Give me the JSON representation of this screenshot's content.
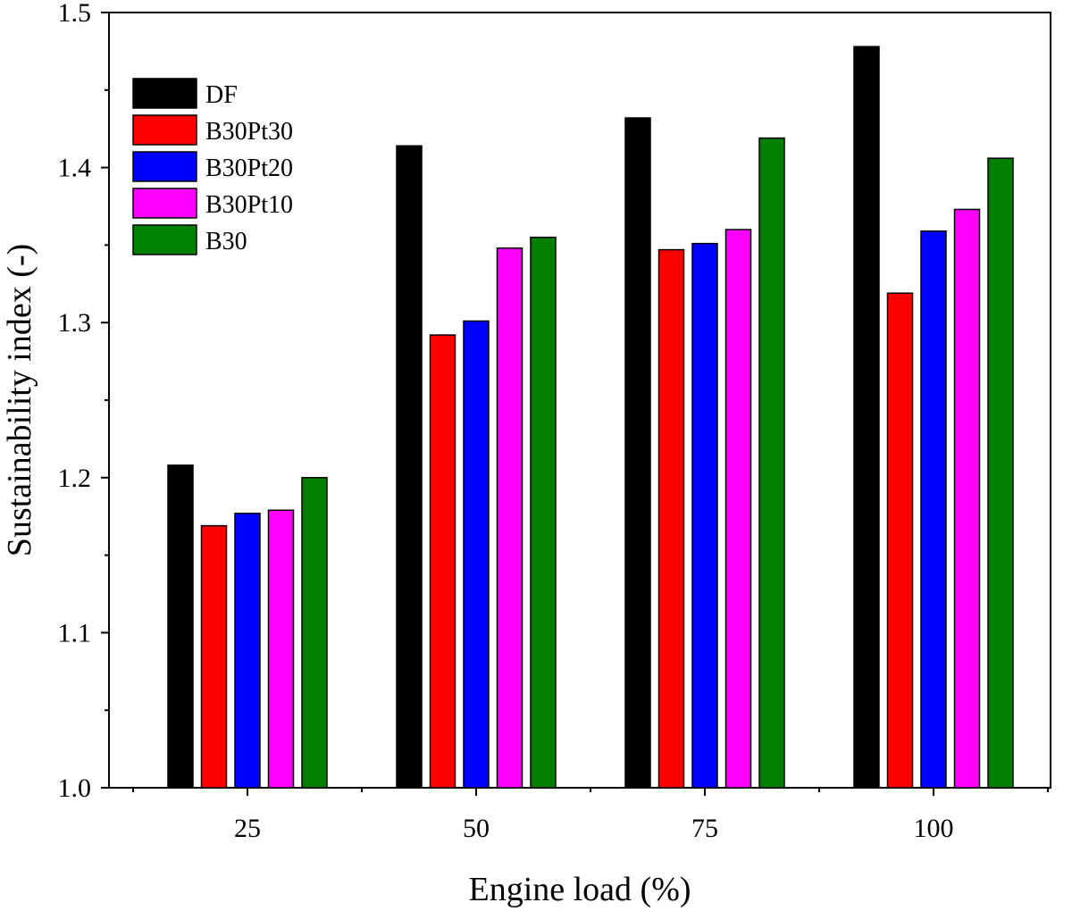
{
  "chart_data": {
    "type": "bar",
    "xlabel": "Engine load (%)",
    "ylabel": "Sustainability index (-)",
    "ylim": [
      1.0,
      1.5
    ],
    "yticks": [
      "1.0",
      "1.1",
      "1.2",
      "1.3",
      "1.4",
      "1.5"
    ],
    "categories": [
      "25",
      "50",
      "75",
      "100"
    ],
    "series": [
      {
        "name": "DF",
        "color": "#000000",
        "values": [
          1.208,
          1.414,
          1.432,
          1.478
        ]
      },
      {
        "name": "B30Pt30",
        "color": "#ff0000",
        "values": [
          1.169,
          1.292,
          1.347,
          1.319
        ]
      },
      {
        "name": "B30Pt20",
        "color": "#0000ff",
        "values": [
          1.177,
          1.301,
          1.351,
          1.359
        ]
      },
      {
        "name": "B30Pt10",
        "color": "#ff00ff",
        "values": [
          1.179,
          1.348,
          1.36,
          1.373
        ]
      },
      {
        "name": "B30",
        "color": "#008000",
        "values": [
          1.2,
          1.355,
          1.419,
          1.406
        ]
      }
    ],
    "legend_position": "top-left",
    "grid": false
  }
}
